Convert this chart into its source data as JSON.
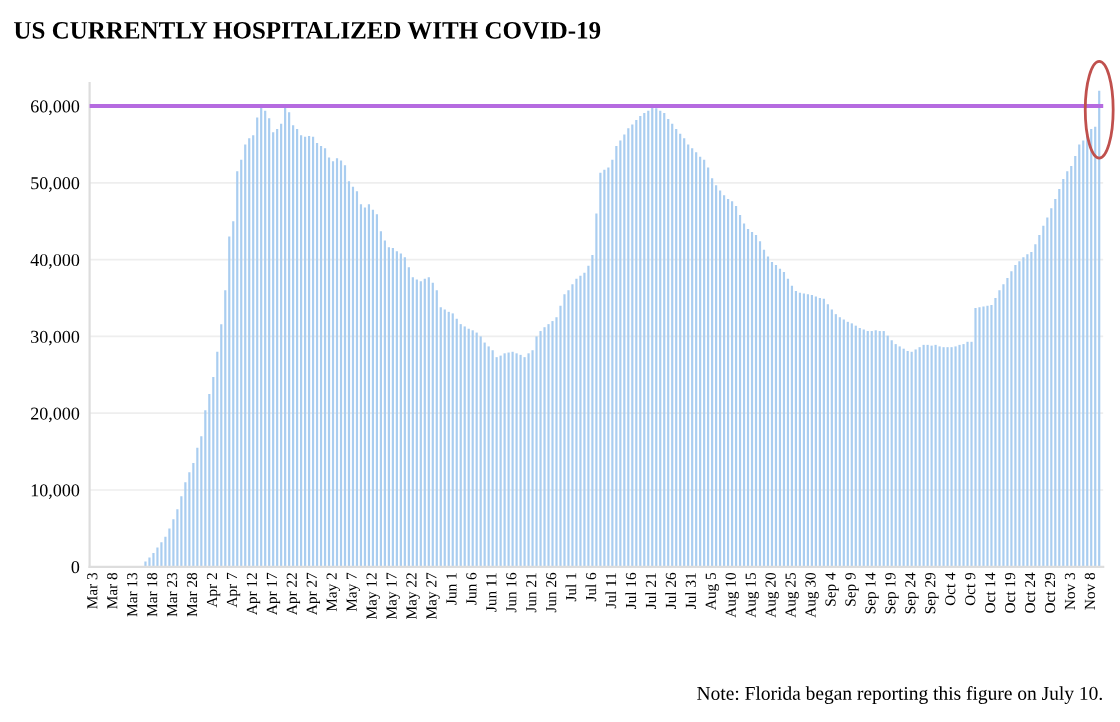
{
  "chart_data": {
    "type": "bar",
    "title": "US CURRENTLY HOSPITALIZED WITH COVID-19",
    "categories": [
      "Mar 3",
      null,
      null,
      null,
      null,
      "Mar 8",
      null,
      null,
      null,
      null,
      "Mar 13",
      null,
      null,
      null,
      null,
      "Mar 18",
      null,
      null,
      null,
      null,
      "Mar 23",
      null,
      null,
      null,
      null,
      "Mar 28",
      null,
      null,
      null,
      null,
      "Apr 2",
      null,
      null,
      null,
      null,
      "Apr 7",
      null,
      null,
      null,
      null,
      "Apr 12",
      null,
      null,
      null,
      null,
      "Apr 17",
      null,
      null,
      null,
      null,
      "Apr 22",
      null,
      null,
      null,
      null,
      "Apr 27",
      null,
      null,
      null,
      null,
      "May 2",
      null,
      null,
      null,
      null,
      "May 7",
      null,
      null,
      null,
      null,
      "May 12",
      null,
      null,
      null,
      null,
      "May 17",
      null,
      null,
      null,
      null,
      "May 22",
      null,
      null,
      null,
      null,
      "May 27",
      null,
      null,
      null,
      null,
      "Jun 1",
      null,
      null,
      null,
      null,
      "Jun 6",
      null,
      null,
      null,
      null,
      "Jun 11",
      null,
      null,
      null,
      null,
      "Jun 16",
      null,
      null,
      null,
      null,
      "Jun 21",
      null,
      null,
      null,
      null,
      "Jun 26",
      null,
      null,
      null,
      null,
      "Jul 1",
      null,
      null,
      null,
      null,
      "Jul 6",
      null,
      null,
      null,
      null,
      "Jul 11",
      null,
      null,
      null,
      null,
      "Jul 16",
      null,
      null,
      null,
      null,
      "Jul 21",
      null,
      null,
      null,
      null,
      "Jul 26",
      null,
      null,
      null,
      null,
      "Jul 31",
      null,
      null,
      null,
      null,
      "Aug 5",
      null,
      null,
      null,
      null,
      "Aug 10",
      null,
      null,
      null,
      null,
      "Aug 15",
      null,
      null,
      null,
      null,
      "Aug 20",
      null,
      null,
      null,
      null,
      "Aug 25",
      null,
      null,
      null,
      null,
      "Aug 30",
      null,
      null,
      null,
      null,
      "Sep 4",
      null,
      null,
      null,
      null,
      "Sep 9",
      null,
      null,
      null,
      null,
      "Sep 14",
      null,
      null,
      null,
      null,
      "Sep 19",
      null,
      null,
      null,
      null,
      "Sep 24",
      null,
      null,
      null,
      null,
      "Sep 29",
      null,
      null,
      null,
      null,
      "Oct 4",
      null,
      null,
      null,
      null,
      "Oct 9",
      null,
      null,
      null,
      null,
      "Oct 14",
      null,
      null,
      null,
      null,
      "Oct 19",
      null,
      null,
      null,
      null,
      "Oct 24",
      null,
      null,
      null,
      null,
      "Oct 29",
      null,
      null,
      null,
      null,
      "Nov 3",
      null,
      null,
      null,
      null,
      "Nov 8",
      null,
      null
    ],
    "values": [
      0,
      0,
      0,
      0,
      0,
      0,
      0,
      0,
      0,
      0,
      100,
      null,
      null,
      700,
      1200,
      1800,
      2500,
      3200,
      3900,
      5000,
      6200,
      7500,
      9200,
      11000,
      12300,
      13500,
      15500,
      17000,
      20400,
      22500,
      24700,
      28000,
      31600,
      36000,
      43000,
      45000,
      51500,
      53000,
      55000,
      55800,
      56200,
      58500,
      60000,
      59400,
      58400,
      56600,
      57000,
      57700,
      60000,
      59200,
      57500,
      57000,
      56200,
      56000,
      56100,
      56000,
      55200,
      54800,
      54500,
      53300,
      52800,
      53200,
      52900,
      52300,
      50200,
      49500,
      48900,
      47200,
      46800,
      47200,
      46500,
      45900,
      43700,
      42500,
      41600,
      41500,
      41100,
      40800,
      40300,
      39000,
      37700,
      37400,
      37200,
      37500,
      37700,
      37000,
      36000,
      33800,
      33500,
      33200,
      33000,
      32300,
      31600,
      31300,
      31000,
      30800,
      30500,
      30000,
      29200,
      28700,
      28200,
      27300,
      27500,
      27800,
      27900,
      28000,
      27800,
      27600,
      27300,
      27800,
      28200,
      30000,
      30700,
      31200,
      31600,
      32000,
      32500,
      34000,
      35500,
      36000,
      36800,
      37500,
      37900,
      38300,
      39200,
      40600,
      46000,
      51300,
      51700,
      52000,
      53000,
      54800,
      55500,
      56300,
      57100,
      57600,
      58200,
      58700,
      59100,
      59400,
      59800,
      59700,
      59400,
      59100,
      58300,
      57700,
      57000,
      56400,
      55800,
      55000,
      54500,
      54000,
      53400,
      53000,
      52000,
      50600,
      49700,
      49000,
      48400,
      47900,
      47600,
      47000,
      45800,
      44700,
      44000,
      43600,
      43200,
      42400,
      41300,
      40400,
      39700,
      39300,
      38800,
      38400,
      37500,
      36600,
      35900,
      35700,
      35600,
      35500,
      35400,
      35200,
      35000,
      34900,
      34200,
      33500,
      32900,
      32500,
      32200,
      31900,
      31700,
      31400,
      31100,
      30900,
      30700,
      30700,
      30800,
      30700,
      30700,
      30100,
      29500,
      29000,
      28700,
      28400,
      28100,
      28000,
      28300,
      28600,
      28900,
      28900,
      28800,
      28900,
      28700,
      28600,
      28600,
      28600,
      28700,
      28900,
      29000,
      29300,
      29300,
      33700,
      33800,
      33900,
      34000,
      34100,
      35000,
      36000,
      36800,
      37600,
      38500,
      39300,
      39800,
      40300,
      40700,
      41000,
      42000,
      43200,
      44400,
      45500,
      46700,
      47900,
      49200,
      50500,
      51500,
      52200,
      53500,
      55000,
      55500,
      56400,
      57000,
      57300,
      62000
    ],
    "color": "#a9cdf0",
    "ylim": [
      0,
      63000
    ],
    "yticks": [
      {
        "value": 0,
        "label": "0"
      },
      {
        "value": 10000,
        "label": "10,000"
      },
      {
        "value": 20000,
        "label": "20,000"
      },
      {
        "value": 30000,
        "label": "30,000"
      },
      {
        "value": 40000,
        "label": "40,000"
      },
      {
        "value": 50000,
        "label": "50,000"
      },
      {
        "value": 60000,
        "label": "60,000"
      }
    ],
    "grid": "y",
    "ref_lines": [
      {
        "axis": "y",
        "value": 60000,
        "color": "#b56be0"
      }
    ],
    "annotations": [
      "Note: Florida began reporting this figure on July 10."
    ]
  }
}
